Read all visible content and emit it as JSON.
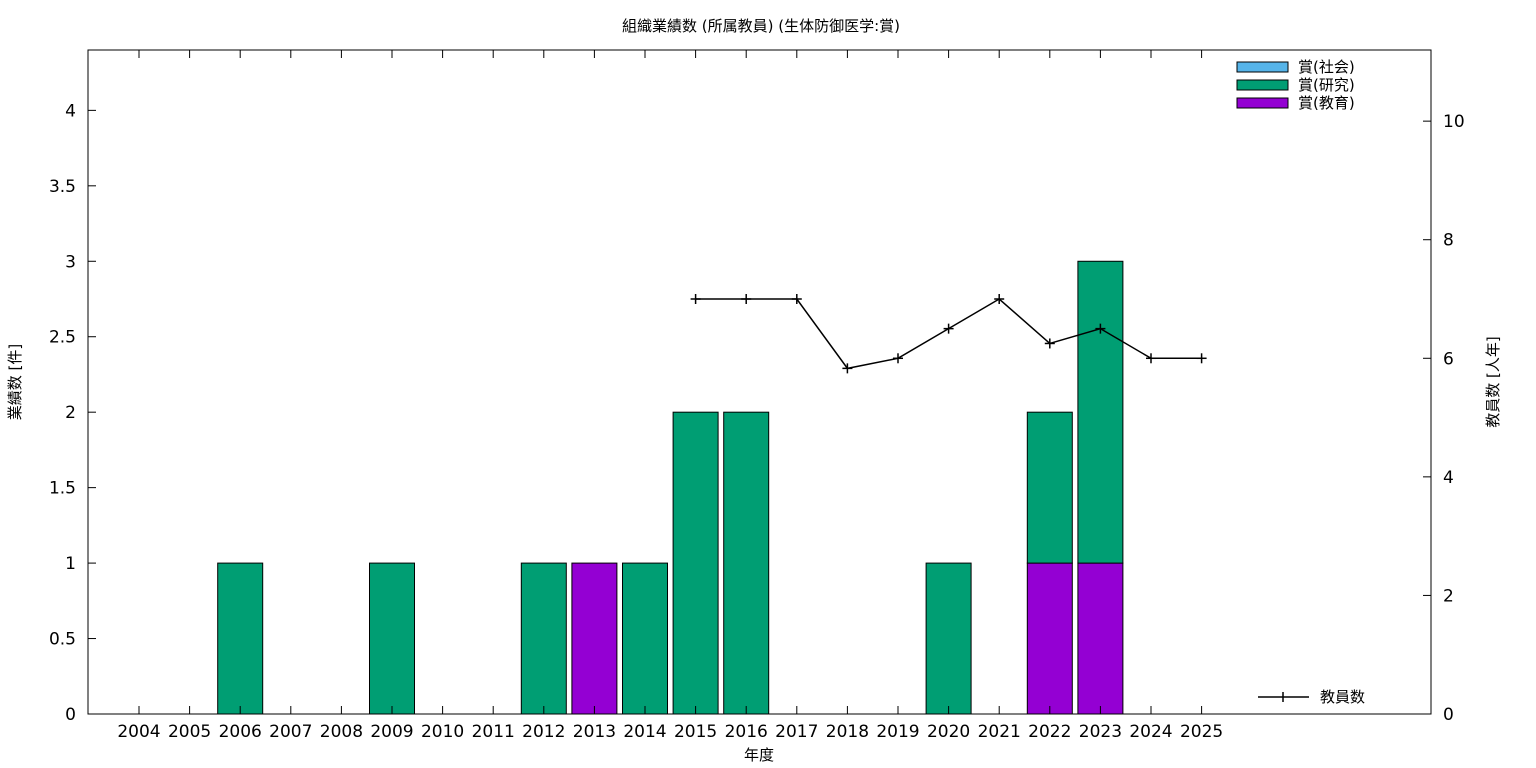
{
  "chart_data": {
    "type": "bar",
    "title": "組織業績数 (所属教員) (生体防御医学:賞)",
    "xlabel": "年度",
    "ylabel": "業績数 [件]",
    "y2label": "教員数 [人年]",
    "categories": [
      "2004",
      "2005",
      "2006",
      "2007",
      "2008",
      "2009",
      "2010",
      "2011",
      "2012",
      "2013",
      "2014",
      "2015",
      "2016",
      "2017",
      "2018",
      "2019",
      "2020",
      "2021",
      "2022",
      "2023",
      "2024",
      "2025"
    ],
    "stacked": true,
    "ylim": [
      0,
      4.4
    ],
    "yticks": [
      0,
      0.5,
      1,
      1.5,
      2,
      2.5,
      3,
      3.5,
      4
    ],
    "ytick_labels": [
      "0",
      "0.5",
      "1",
      "1.5",
      "2",
      "2.5",
      "3",
      "3.5",
      "4"
    ],
    "y2lim": [
      0,
      11.2
    ],
    "y2ticks": [
      0,
      2,
      4,
      6,
      8,
      10
    ],
    "y2tick_labels": [
      "0",
      "2",
      "4",
      "6",
      "8",
      "10"
    ],
    "series": [
      {
        "name": "賞(社会)",
        "color": "#56b4e9",
        "values": [
          0,
          0,
          0,
          0,
          0,
          0,
          0,
          0,
          0,
          0,
          0,
          0,
          0,
          0,
          0,
          0,
          0,
          0,
          0,
          0,
          0,
          0
        ]
      },
      {
        "name": "賞(教育)",
        "color": "#9400d3",
        "values": [
          0,
          0,
          0,
          0,
          0,
          0,
          0,
          0,
          0,
          1,
          0,
          0,
          0,
          0,
          0,
          0,
          0,
          0,
          1,
          1,
          0,
          0
        ]
      },
      {
        "name": "賞(研究)",
        "color": "#009e73",
        "values": [
          0,
          0,
          1,
          0,
          0,
          1,
          0,
          0,
          1,
          0,
          1,
          2,
          2,
          0,
          0,
          0,
          1,
          0,
          1,
          2,
          0,
          0
        ]
      }
    ],
    "line_series": {
      "name": "教員数",
      "color": "#000000",
      "axis": "y2",
      "x": [
        "2015",
        "2016",
        "2017",
        "2018",
        "2019",
        "2020",
        "2021",
        "2022",
        "2023",
        "2024",
        "2025"
      ],
      "values": [
        7,
        7,
        7,
        5.83,
        6,
        6.5,
        7,
        6.25,
        6.5,
        6,
        6
      ]
    },
    "legend": {
      "position": "top-right",
      "entries": [
        "賞(社会)",
        "賞(研究)",
        "賞(教育)"
      ],
      "line_position": "bottom-right"
    },
    "grid": false
  }
}
